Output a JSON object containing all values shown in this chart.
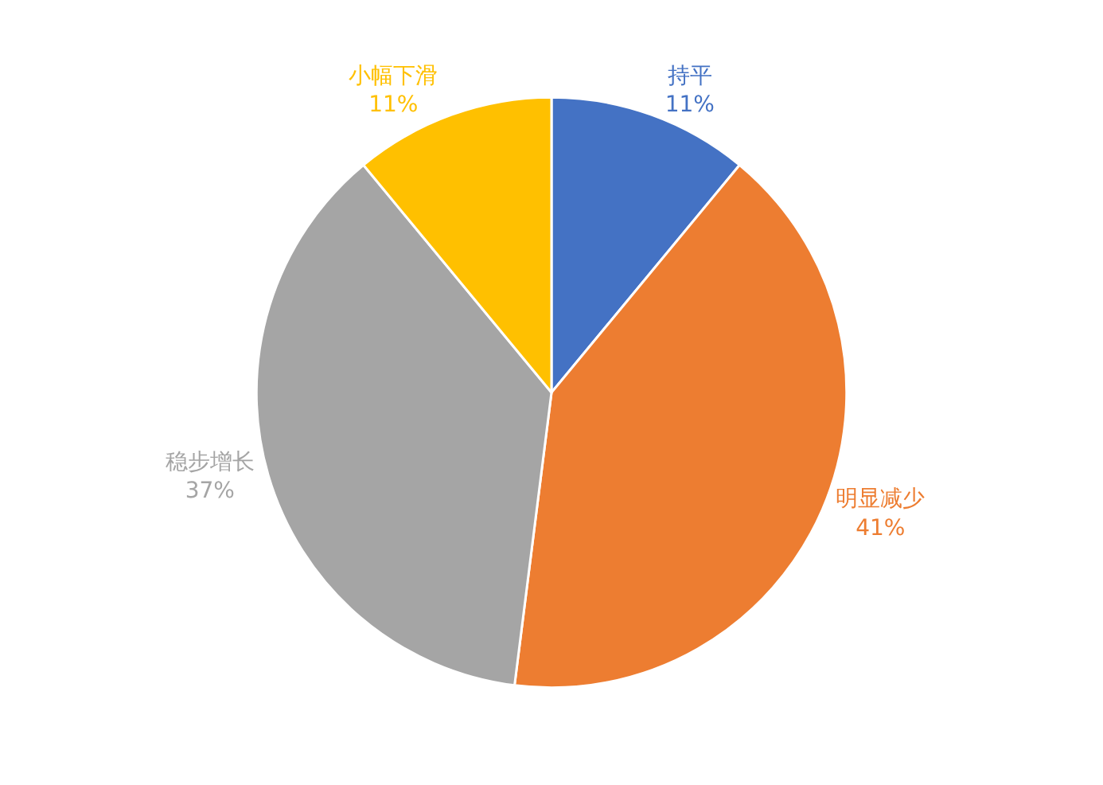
{
  "chart_data": {
    "type": "pie",
    "categories": [
      "持平",
      "明显减少",
      "稳步增长",
      "小幅下滑"
    ],
    "values": [
      11,
      41,
      37,
      11
    ],
    "value_labels": [
      "11%",
      "41%",
      "37%",
      "11%"
    ],
    "colors": [
      "#4472c4",
      "#ed7d31",
      "#a5a5a5",
      "#ffc000"
    ],
    "legend": false
  }
}
